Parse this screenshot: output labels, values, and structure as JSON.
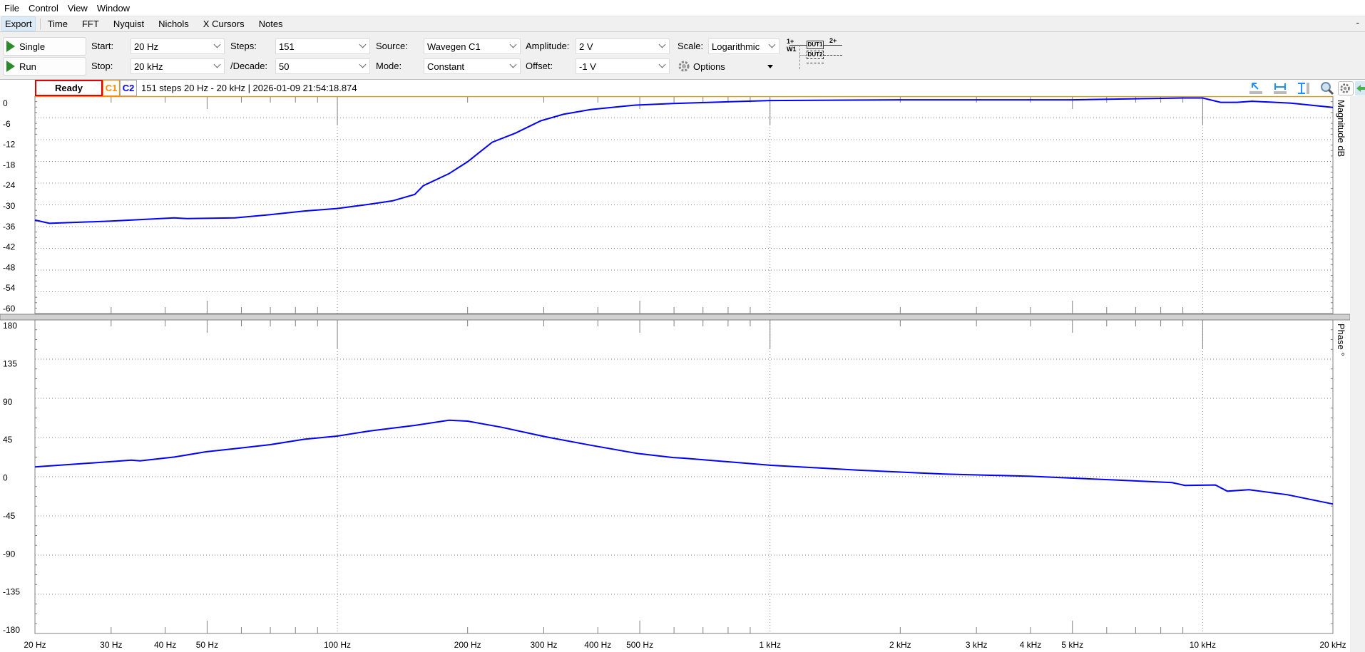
{
  "menu": [
    "File",
    "Control",
    "View",
    "Window"
  ],
  "tabs": {
    "export": "Export",
    "items": [
      "Time",
      "FFT",
      "Nyquist",
      "Nichols",
      "X Cursors",
      "Notes"
    ]
  },
  "window": {
    "minimize": "-"
  },
  "toolbar": {
    "single": "Single",
    "run": "Run",
    "start_label": "Start:",
    "start_value": "20 Hz",
    "stop_label": "Stop:",
    "stop_value": "20 kHz",
    "steps_label": "Steps:",
    "steps_value": "151",
    "decade_label": "/Decade:",
    "decade_value": "50",
    "source_label": "Source:",
    "source_value": "Wavegen C1",
    "mode_label": "Mode:",
    "mode_value": "Constant",
    "amplitude_label": "Amplitude:",
    "amplitude_value": "2 V",
    "offset_label": "Offset:",
    "offset_value": "-1 V",
    "scale_label": "Scale:",
    "scale_value": "Logarithmic",
    "options": "Options",
    "diagram": {
      "in": "1+",
      "w": "W1",
      "dut1": "DUT1",
      "dut2": "DUT2",
      "out": "2+"
    }
  },
  "status": {
    "state": "Ready",
    "c1": "C1",
    "c2": "C2",
    "info": "151 steps  20 Hz - 20 kHz | 2026-01-09 21:54:18.874"
  },
  "colors": {
    "trace": "#0000ff",
    "c1": "#ff8c00",
    "c2": "#0000ff",
    "ready_border": "#e00000",
    "plot_border": "#ff8c00",
    "grid": "#808080"
  },
  "chart_data": [
    {
      "type": "line",
      "xscale": "log",
      "xlim": [
        20,
        20000
      ],
      "ylim": [
        -60,
        0
      ],
      "ylabel": "Magnitude  dB",
      "yticks": [
        "0",
        "-6",
        "-12",
        "-18",
        "-24",
        "-30",
        "-36",
        "-42",
        "-48",
        "-54",
        "-60"
      ],
      "grid": true,
      "series": [
        {
          "color": "#0000ff",
          "points": [
            [
              20,
              -34.2
            ],
            [
              21.6,
              -35.1
            ],
            [
              29.7,
              -34.5
            ],
            [
              42,
              -33.6
            ],
            [
              45,
              -33.8
            ],
            [
              58,
              -33.6
            ],
            [
              70,
              -32.7
            ],
            [
              84,
              -31.7
            ],
            [
              100,
              -31
            ],
            [
              119,
              -29.8
            ],
            [
              134,
              -28.9
            ],
            [
              151,
              -27.1
            ],
            [
              158,
              -24.7
            ],
            [
              181,
              -21.4
            ],
            [
              200,
              -18.1
            ],
            [
              214,
              -15.3
            ],
            [
              228,
              -12.7
            ],
            [
              258,
              -10.2
            ],
            [
              295,
              -6.8
            ],
            [
              333,
              -5
            ],
            [
              385,
              -3.7
            ],
            [
              483,
              -2.5
            ],
            [
              597,
              -2
            ],
            [
              1000,
              -1.2
            ],
            [
              2000,
              -1
            ],
            [
              5000,
              -1
            ],
            [
              9000,
              -0.5
            ],
            [
              10000,
              -0.5
            ],
            [
              11000,
              -1.7
            ],
            [
              12000,
              -1.7
            ],
            [
              13000,
              -1.4
            ],
            [
              16000,
              -1.9
            ],
            [
              20000,
              -3.1
            ]
          ]
        }
      ]
    },
    {
      "type": "line",
      "xscale": "log",
      "xlim": [
        20,
        20000
      ],
      "ylim": [
        -180,
        180
      ],
      "ylabel": "Phase  °",
      "yticks": [
        "180",
        "135",
        "90",
        "45",
        "0",
        "-45",
        "-90",
        "-135",
        "-180"
      ],
      "grid": true,
      "series": [
        {
          "color": "#0000ff",
          "points": [
            [
              20,
              11.2
            ],
            [
              29.7,
              17.2
            ],
            [
              33.4,
              19
            ],
            [
              35,
              18.2
            ],
            [
              42,
              22.6
            ],
            [
              49.7,
              28.6
            ],
            [
              58,
              32.2
            ],
            [
              70,
              36.8
            ],
            [
              84,
              43
            ],
            [
              100,
              46.6
            ],
            [
              119,
              52.6
            ],
            [
              151,
              58.9
            ],
            [
              181,
              64.9
            ],
            [
              200,
              63.8
            ],
            [
              240,
              56.7
            ],
            [
              303,
              45.8
            ],
            [
              385,
              36.2
            ],
            [
              494,
              26.7
            ],
            [
              597,
              22
            ],
            [
              632,
              21.3
            ],
            [
              1006,
              13.1
            ],
            [
              1593,
              7.6
            ],
            [
              2523,
              3
            ],
            [
              3996,
              0.5
            ],
            [
              6300,
              -3.8
            ],
            [
              8500,
              -6.8
            ],
            [
              9100,
              -10
            ],
            [
              10700,
              -9.5
            ],
            [
              11400,
              -16.6
            ],
            [
              12800,
              -15
            ],
            [
              15700,
              -20.7
            ],
            [
              20000,
              -31.3
            ]
          ]
        }
      ]
    }
  ],
  "xaxis": {
    "ticks": [
      {
        "f": 20,
        "label": "20 Hz"
      },
      {
        "f": 30,
        "label": "30 Hz"
      },
      {
        "f": 40,
        "label": "40 Hz"
      },
      {
        "f": 50,
        "label": "50 Hz"
      },
      {
        "f": 100,
        "label": "100 Hz"
      },
      {
        "f": 200,
        "label": "200 Hz"
      },
      {
        "f": 300,
        "label": "300 Hz"
      },
      {
        "f": 400,
        "label": "400 Hz"
      },
      {
        "f": 500,
        "label": "500 Hz"
      },
      {
        "f": 1000,
        "label": "1 kHz"
      },
      {
        "f": 2000,
        "label": "2 kHz"
      },
      {
        "f": 3000,
        "label": "3 kHz"
      },
      {
        "f": 4000,
        "label": "4 kHz"
      },
      {
        "f": 5000,
        "label": "5 kHz"
      },
      {
        "f": 10000,
        "label": "10 kHz"
      },
      {
        "f": 20000,
        "label": "20 kHz"
      }
    ]
  },
  "icons": [
    "cursor-measure-icon",
    "horizontal-measure-icon",
    "vertical-measure-icon",
    "zoom-icon",
    "gear-icon",
    "back-arrow-icon"
  ]
}
